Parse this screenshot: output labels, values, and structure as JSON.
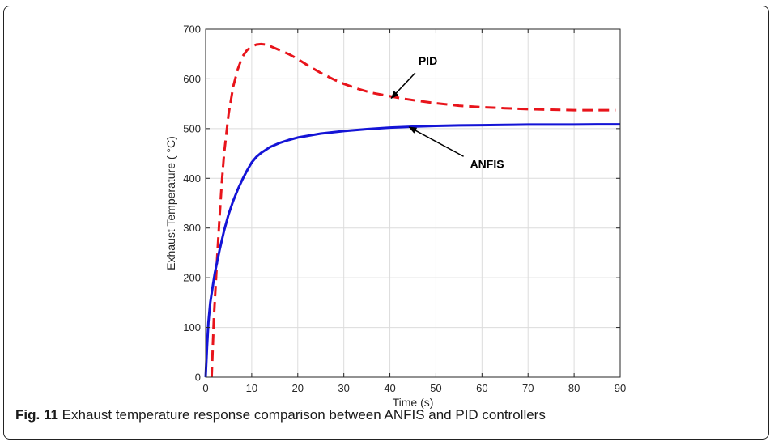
{
  "caption": {
    "label": "Fig. 11",
    "text": " Exhaust temperature response comparison between ANFIS and PID controllers"
  },
  "chart_data": {
    "type": "line",
    "title": "",
    "xlabel": "Time (s)",
    "ylabel": "Exhaust Temperature ( °C)",
    "xlim": [
      0,
      90
    ],
    "ylim": [
      0,
      700
    ],
    "xticks": [
      0,
      10,
      20,
      30,
      40,
      50,
      60,
      70,
      80,
      90
    ],
    "yticks": [
      0,
      100,
      200,
      300,
      400,
      500,
      600,
      700
    ],
    "grid": true,
    "series": [
      {
        "name": "PID",
        "color": "#e8141b",
        "style": "dashed",
        "x": [
          1.3,
          1.8,
          2.5,
          3.0,
          3.5,
          4.0,
          5.0,
          6.0,
          7.0,
          8.0,
          9.0,
          10.0,
          11.0,
          12.0,
          13.0,
          14.0,
          16.0,
          18.0,
          20.0,
          22.0,
          25.0,
          28.0,
          30.0,
          33.0,
          36.0,
          40.0,
          43.0,
          46.0,
          50.0,
          55.0,
          60.0,
          65.0,
          70.0,
          75.0,
          80.0,
          85.0,
          89.0
        ],
        "values": [
          0,
          120,
          240,
          320,
          390,
          450,
          530,
          585,
          620,
          645,
          658,
          665,
          669,
          670,
          669,
          666,
          658,
          650,
          640,
          628,
          612,
          598,
          590,
          580,
          572,
          565,
          560,
          556,
          551,
          546,
          543,
          541,
          539,
          538,
          537,
          537,
          537
        ]
      },
      {
        "name": "ANFIS",
        "color": "#1414d6",
        "style": "solid",
        "x": [
          0,
          0.3,
          0.6,
          1.0,
          1.5,
          2.0,
          3.0,
          4.0,
          5.0,
          6.0,
          7.0,
          8.0,
          9.0,
          10.0,
          11.0,
          12.0,
          14.0,
          16.0,
          18.0,
          20.0,
          25.0,
          30.0,
          35.0,
          40.0,
          45.0,
          50.0,
          55.0,
          60.0,
          65.0,
          70.0,
          75.0,
          80.0,
          85.0,
          90.0
        ],
        "values": [
          0,
          60,
          110,
          150,
          180,
          210,
          255,
          295,
          328,
          355,
          378,
          398,
          416,
          432,
          443,
          451,
          463,
          471,
          477,
          482,
          490,
          495,
          499,
          502,
          504,
          505.5,
          506.5,
          507,
          507.5,
          508,
          508,
          508,
          508.5,
          508.5
        ]
      }
    ],
    "annotations": [
      {
        "text": "PID",
        "arrow_from": [
          45.5,
          612
        ],
        "arrow_to": [
          40.3,
          561
        ]
      },
      {
        "text": "ANFIS",
        "arrow_from": [
          56,
          444
        ],
        "arrow_to": [
          44.2,
          503
        ]
      }
    ]
  }
}
